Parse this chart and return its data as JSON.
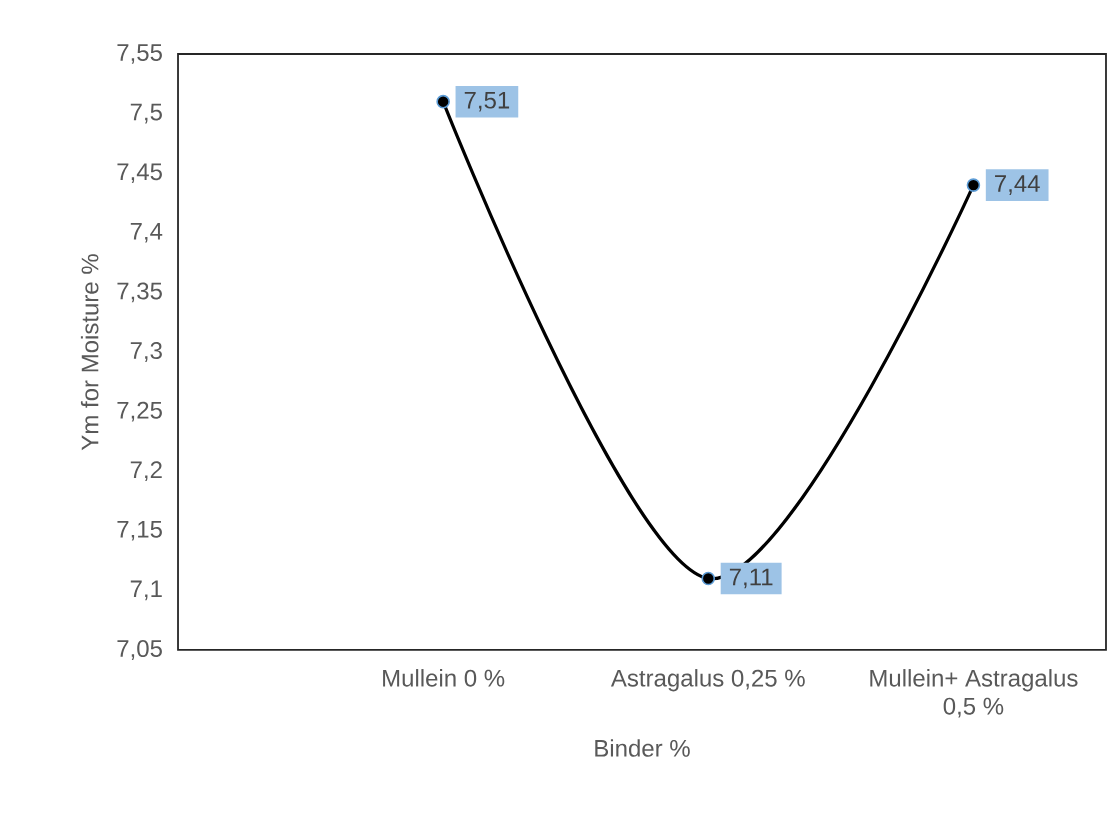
{
  "chart_data": {
    "type": "line",
    "xlabel": "Binder %",
    "ylabel": "Ym for Moisture %",
    "categories": [
      "Mullein 0 %",
      "Astragalus 0,25 %",
      "Mullein+ Astragalus 0,5 %"
    ],
    "series": [
      {
        "color": "#000000",
        "values": [
          7.51,
          7.11,
          7.44
        ],
        "value_labels": [
          "7,51",
          "7,11",
          "7,44"
        ]
      }
    ],
    "ylim": [
      7.05,
      7.55
    ],
    "yticks": [
      {
        "value": 7.05,
        "label": "7,05"
      },
      {
        "value": 7.1,
        "label": "7,1"
      },
      {
        "value": 7.15,
        "label": "7,15"
      },
      {
        "value": 7.2,
        "label": "7,2"
      },
      {
        "value": 7.25,
        "label": "7,25"
      },
      {
        "value": 7.3,
        "label": "7,3"
      },
      {
        "value": 7.35,
        "label": "7,35"
      },
      {
        "value": 7.4,
        "label": "7,4"
      },
      {
        "value": 7.45,
        "label": "7,45"
      },
      {
        "value": 7.5,
        "label": "7,5"
      },
      {
        "value": 7.55,
        "label": "7,55"
      }
    ],
    "marker": "circle"
  }
}
